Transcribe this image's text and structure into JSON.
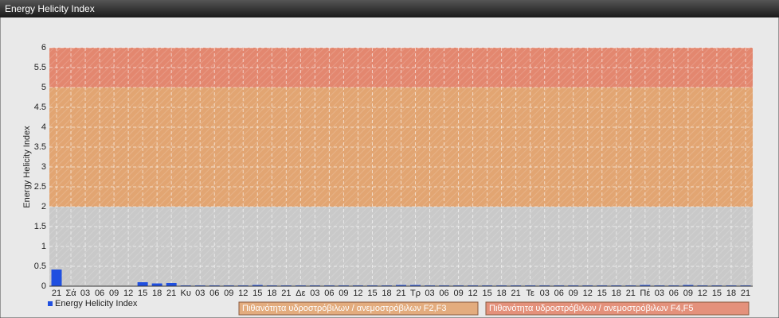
{
  "header": {
    "title": "Energy Helicity Index"
  },
  "chart_data": {
    "type": "bar",
    "y_label": "Energy Helicity Index",
    "categories": [
      "21",
      "Σά",
      "03",
      "06",
      "09",
      "12",
      "15",
      "18",
      "21",
      "Κυ",
      "03",
      "06",
      "09",
      "12",
      "15",
      "18",
      "21",
      "Δε",
      "03",
      "06",
      "09",
      "12",
      "15",
      "18",
      "21",
      "Τρ",
      "03",
      "06",
      "09",
      "12",
      "15",
      "18",
      "21",
      "Τε",
      "03",
      "06",
      "09",
      "12",
      "15",
      "18",
      "21",
      "Πέ",
      "03",
      "06",
      "09",
      "12",
      "15",
      "18",
      "21"
    ],
    "series": [
      {
        "name": "Energy Helicity Index",
        "color": "#1f4fe0",
        "values": [
          0.42,
          0.01,
          0.01,
          0.01,
          0.01,
          0.01,
          0.1,
          0.07,
          0.08,
          0.02,
          0.02,
          0.02,
          0.02,
          0.02,
          0.03,
          0.02,
          0.02,
          0.02,
          0.02,
          0.02,
          0.02,
          0.02,
          0.02,
          0.02,
          0.03,
          0.03,
          0.02,
          0.02,
          0.02,
          0.02,
          0.02,
          0.02,
          0.02,
          0.02,
          0.02,
          0.02,
          0.02,
          0.02,
          0.02,
          0.02,
          0.02,
          0.03,
          0.02,
          0.02,
          0.03,
          0.02,
          0.02,
          0.02,
          0.02
        ]
      }
    ],
    "ylim": [
      0,
      6
    ],
    "yticks": [
      0,
      0.5,
      1,
      1.5,
      2,
      2.5,
      3,
      3.5,
      4,
      4.5,
      5,
      5.5,
      6
    ],
    "grid": true,
    "zones": [
      {
        "name": "Πιθανότητα υδροστρόβιλων / ανεμοστρόβιλων F2,F3",
        "from": 2,
        "to": 5,
        "color": "#e2a572"
      },
      {
        "name": "Πιθανότητα υδροστρόβιλων / ανεμοστρόβιλων F4,F5",
        "from": 5,
        "to": 6,
        "color": "#e3876f"
      }
    ]
  }
}
